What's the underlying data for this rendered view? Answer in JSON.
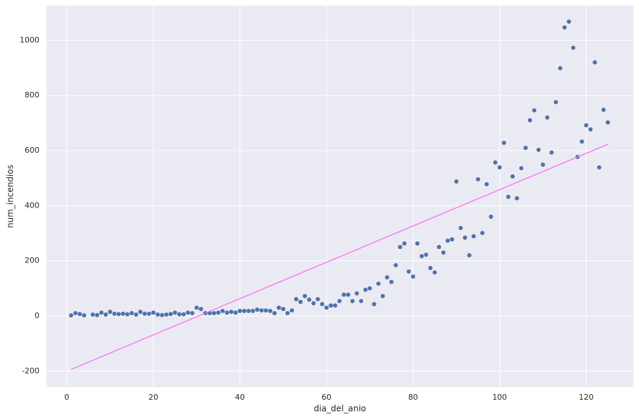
{
  "chart_data": {
    "type": "scatter",
    "x_label": "dia_del_anio",
    "y_label": "num_incendios",
    "x": [
      1,
      2,
      3,
      4,
      6,
      7,
      8,
      9,
      10,
      11,
      12,
      13,
      14,
      15,
      16,
      17,
      18,
      19,
      20,
      21,
      22,
      23,
      24,
      25,
      26,
      27,
      28,
      29,
      30,
      31,
      32,
      33,
      34,
      35,
      36,
      37,
      38,
      39,
      40,
      41,
      42,
      43,
      44,
      45,
      46,
      47,
      48,
      49,
      50,
      51,
      52,
      53,
      54,
      55,
      56,
      57,
      58,
      59,
      60,
      61,
      62,
      63,
      64,
      65,
      66,
      67,
      68,
      69,
      70,
      71,
      72,
      73,
      74,
      75,
      76,
      77,
      78,
      79,
      80,
      81,
      82,
      83,
      84,
      85,
      86,
      87,
      88,
      89,
      90,
      91,
      92,
      93,
      94,
      95,
      96,
      97,
      98,
      99,
      100,
      101,
      102,
      103,
      104,
      105,
      106,
      107,
      108,
      109,
      110,
      111,
      112,
      113,
      114,
      115,
      116,
      117,
      118,
      119,
      120,
      121,
      122,
      123,
      124,
      125
    ],
    "values": [
      2,
      10,
      7,
      2,
      5,
      3,
      12,
      5,
      15,
      8,
      7,
      8,
      6,
      10,
      5,
      15,
      8,
      8,
      12,
      5,
      3,
      5,
      7,
      12,
      6,
      6,
      12,
      10,
      30,
      25,
      10,
      10,
      10,
      12,
      18,
      12,
      15,
      12,
      18,
      18,
      18,
      18,
      23,
      20,
      20,
      18,
      10,
      30,
      25,
      10,
      20,
      61,
      51,
      72,
      59,
      46,
      61,
      43,
      30,
      38,
      38,
      54,
      77,
      77,
      54,
      82,
      54,
      95,
      100,
      43,
      117,
      72,
      140,
      123,
      184,
      250,
      263,
      161,
      143,
      263,
      217,
      222,
      174,
      158,
      250,
      230,
      273,
      278,
      488,
      319,
      284,
      220,
      289,
      496,
      301,
      478,
      360,
      557,
      539,
      628,
      432,
      506,
      427,
      536,
      610,
      710,
      746,
      603,
      549,
      720,
      593,
      776,
      899,
      1047,
      1068,
      973,
      577,
      633,
      692,
      677,
      920,
      539,
      748,
      702
    ],
    "color": "#4c72b0",
    "fit_line": {
      "x": [
        1,
        125
      ],
      "values": [
        -194,
        623
      ],
      "color": "#ff6bff"
    },
    "xlim": [
      -4.7,
      130.9
    ],
    "ylim": [
      -258,
      1126
    ],
    "xticks": [
      0,
      20,
      40,
      60,
      80,
      100,
      120
    ],
    "yticks": [
      -200,
      0,
      200,
      400,
      600,
      800,
      1000
    ],
    "grid": true
  }
}
